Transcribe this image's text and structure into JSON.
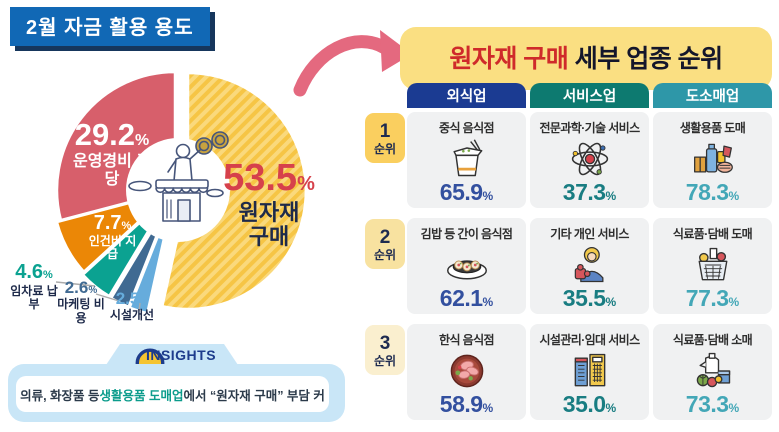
{
  "percent_sign": "%",
  "header": {
    "title": "2월 자금 활용 용도",
    "badge_color": "#1168B5"
  },
  "accents": {
    "arrow_color": "#E4697F"
  },
  "chart_data": {
    "type": "pie",
    "title": "2월 자금 활용 용도",
    "unit": "%",
    "slices": [
      {
        "label": "원자재 구매",
        "value": "53.5",
        "color": "#F6C545",
        "stripe_color": "#FAD97C",
        "value_color": "#D6414B",
        "pattern": "diagonal-stripes",
        "exploded": true
      },
      {
        "label": "운영경비 충당",
        "value": "29.2",
        "color": "#D75F6B",
        "value_color": "#FFFFFF"
      },
      {
        "label": "인건비 지급",
        "value": "7.7",
        "color": "#EB8706",
        "value_color": "#FFFFFF"
      },
      {
        "label": "임차료 납부",
        "value": "4.6",
        "color": "#0BA291",
        "value_color": "#0BA291"
      },
      {
        "label": "마케팅 비용",
        "value": "2.6",
        "color": "#406A92",
        "value_color": "#406A92"
      },
      {
        "label": "시설개선",
        "value": "2.5",
        "color": "#66ACDC",
        "value_color": "#66ACDC"
      }
    ],
    "center_illustration": "shopkeeper-with-coins"
  },
  "insights": {
    "tab_label": "INSIGHTS",
    "bulb_icon": "lightbulb-icon",
    "text_prefix": "의류, 화장품 등 ",
    "highlight": "생활용품 도매업",
    "highlight_color": "#0C9C8C",
    "text_suffix": "에서 “원자재 구매” 부담 커"
  },
  "panel": {
    "title_highlight": "원자재 구매",
    "title_highlight_color": "#CF2A2A",
    "title_rest": " 세부 업종 순위",
    "title_bg": "#FADF82",
    "rank_label": "순위",
    "columns": [
      {
        "label": "외식업",
        "color": "#1B3B92",
        "value_color": "#33509F"
      },
      {
        "label": "서비스업",
        "color": "#0D7A70",
        "value_color": "#197D82"
      },
      {
        "label": "도소매업",
        "color": "#2E97A8",
        "value_color": "#43A7B7"
      }
    ],
    "rows": [
      {
        "rank": "1",
        "badge_color": "#FACF5F",
        "cells": [
          {
            "name": "중식 음식점",
            "value": "65.9",
            "icon": "takeout-box-icon"
          },
          {
            "name": "전문과학·기술 서비스",
            "value": "37.3",
            "icon": "atom-icon"
          },
          {
            "name": "생활용품 도매",
            "value": "78.3",
            "icon": "household-goods-icon"
          }
        ]
      },
      {
        "rank": "2",
        "badge_color": "#F8E2A0",
        "cells": [
          {
            "name": "김밥 등 간이 음식점",
            "value": "62.1",
            "icon": "kimbap-plate-icon"
          },
          {
            "name": "기타 개인 서비스",
            "value": "35.5",
            "icon": "person-puzzle-icon"
          },
          {
            "name": "식료품·담배 도매",
            "value": "77.3",
            "icon": "shopping-basket-icon"
          }
        ]
      },
      {
        "rank": "3",
        "badge_color": "#FAEFCF",
        "cells": [
          {
            "name": "한식 음식점",
            "value": "58.9",
            "icon": "korean-food-bowl-icon"
          },
          {
            "name": "시설관리·임대 서비스",
            "value": "35.0",
            "icon": "buildings-icon"
          },
          {
            "name": "식료품·담배 소매",
            "value": "73.3",
            "icon": "grocery-retail-icon"
          }
        ]
      }
    ]
  }
}
